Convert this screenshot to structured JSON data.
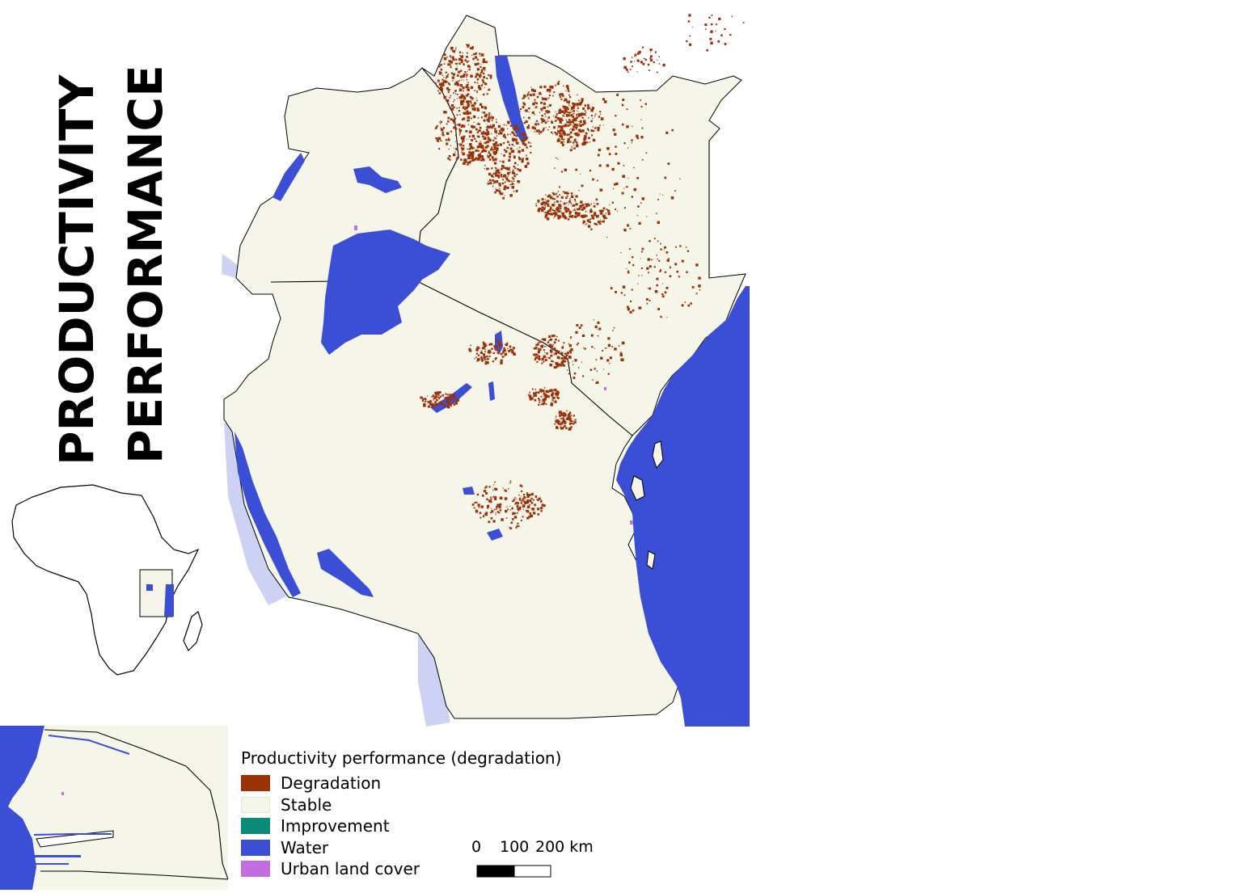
{
  "title": {
    "line1": "PRODUCTIVITY",
    "line2": "PERFORMANCE"
  },
  "legend": {
    "title": "Productivity performance (degradation)",
    "items": [
      {
        "label": "Degradation",
        "color": "#9c3106"
      },
      {
        "label": "Stable",
        "color": "#f5f5ea"
      },
      {
        "label": "Improvement",
        "color": "#0c8a78"
      },
      {
        "label": "Water",
        "color": "#3b4fd6"
      },
      {
        "label": "Urban land cover",
        "color": "#c36ee0"
      }
    ]
  },
  "scalebar": {
    "ticks": [
      "0",
      "100",
      "200 km"
    ]
  },
  "colors": {
    "water": "#3b4fd6",
    "stable": "#f5f5ea",
    "degradation": "#9c3106",
    "lake_outside": "#cdd2f4",
    "urban": "#c36ee0"
  }
}
